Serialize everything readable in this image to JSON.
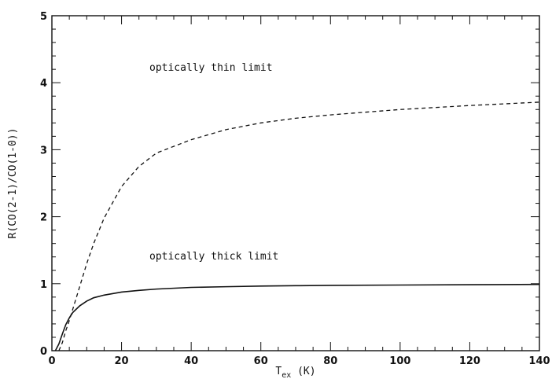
{
  "chart_data": {
    "type": "line",
    "xlabel_main": "T",
    "xlabel_sub": "ex",
    "xlabel_unit": " (K)",
    "ylabel": "R(CO(2-1)/CO(1-0))",
    "xlim": [
      0,
      140
    ],
    "ylim": [
      0,
      5
    ],
    "xticks": [
      0,
      20,
      40,
      60,
      80,
      100,
      120,
      140
    ],
    "yticks": [
      0,
      1,
      2,
      3,
      4,
      5
    ],
    "grid": false,
    "annotations": [
      {
        "text": "optically thin limit",
        "x": 28,
        "y": 4.18
      },
      {
        "text": "optically thick limit",
        "x": 28,
        "y": 1.36
      }
    ],
    "series": [
      {
        "label": "optically thick limit",
        "style": "solid",
        "x": [
          1,
          2,
          3,
          4,
          5,
          6,
          8,
          10,
          12,
          15,
          20,
          25,
          30,
          40,
          50,
          60,
          70,
          80,
          100,
          120,
          140
        ],
        "y": [
          0.0,
          0.1,
          0.25,
          0.39,
          0.49,
          0.57,
          0.67,
          0.74,
          0.79,
          0.83,
          0.875,
          0.9,
          0.92,
          0.945,
          0.955,
          0.965,
          0.97,
          0.975,
          0.98,
          0.985,
          0.99
        ]
      },
      {
        "label": "optically thin limit",
        "style": "dashed",
        "x": [
          2,
          3,
          4,
          5,
          6,
          8,
          10,
          12,
          15,
          20,
          25,
          30,
          40,
          50,
          60,
          70,
          80,
          100,
          120,
          140
        ],
        "y": [
          0.0,
          0.12,
          0.3,
          0.45,
          0.62,
          0.96,
          1.3,
          1.6,
          1.98,
          2.45,
          2.75,
          2.95,
          3.15,
          3.3,
          3.4,
          3.47,
          3.52,
          3.6,
          3.66,
          3.71
        ]
      }
    ]
  }
}
